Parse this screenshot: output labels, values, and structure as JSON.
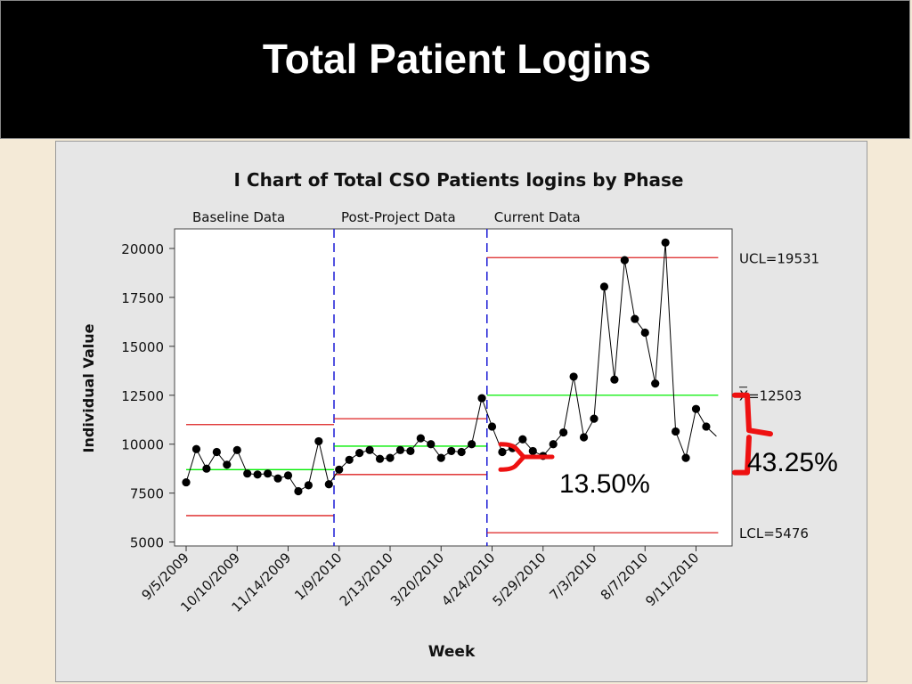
{
  "slide": {
    "title": "Total Patient Logins"
  },
  "chart_data": {
    "type": "line",
    "title": "I Chart of Total CSO Patients logins by Phase",
    "xlabel": "Week",
    "ylabel": "Individual Value",
    "ylim": [
      4800,
      21000
    ],
    "yticks": [
      5000,
      7500,
      10000,
      12500,
      15000,
      17500,
      20000
    ],
    "xtick_labels": [
      "9/5/2009",
      "10/10/2009",
      "11/14/2009",
      "1/9/2010",
      "2/13/2010",
      "3/20/2010",
      "4/24/2010",
      "5/29/2010",
      "7/3/2010",
      "8/7/2010",
      "9/11/2010"
    ],
    "xtick_index": [
      0,
      5,
      10,
      15,
      20,
      25,
      30,
      35,
      40,
      45,
      50
    ],
    "values": [
      8050,
      9750,
      8750,
      9600,
      8950,
      9700,
      8500,
      8450,
      8500,
      8250,
      8400,
      7600,
      7900,
      10150,
      7950,
      8700,
      9200,
      9550,
      9700,
      9250,
      9300,
      9700,
      9650,
      10300,
      10000,
      9300,
      9650,
      9600,
      10000,
      12350,
      10900,
      9600,
      9800,
      10250,
      9650,
      9400,
      10000,
      10600,
      13450,
      10350,
      11300,
      18050,
      13300,
      19400,
      16400,
      15700,
      13100,
      20300,
      10650,
      9300,
      11800,
      10900,
      10400
    ],
    "phases": [
      {
        "label": "Baseline Data",
        "start": 0,
        "end": 15,
        "mean": 8700,
        "ucl": 11000,
        "lcl": 6350
      },
      {
        "label": "Post-Project Data",
        "start": 15,
        "end": 30,
        "mean": 9900,
        "ucl": 11300,
        "lcl": 8450
      },
      {
        "label": "Current Data",
        "start": 30,
        "end": 52,
        "mean": 12503,
        "ucl": 19531,
        "lcl": 5476
      }
    ],
    "labels": {
      "ucl": "UCL=19531",
      "mean": "=12503",
      "mean_symbol": "X",
      "lcl": "LCL=5476"
    },
    "annotations": {
      "pct_small": "13.50%",
      "pct_large": "43.25%"
    },
    "colors": {
      "data": "#000000",
      "mean": "#00ee00",
      "limits": "#dd2222",
      "phase_divider": "#1a1ad6",
      "bracket": "#ee1111"
    },
    "grid": false,
    "legend": "none"
  }
}
